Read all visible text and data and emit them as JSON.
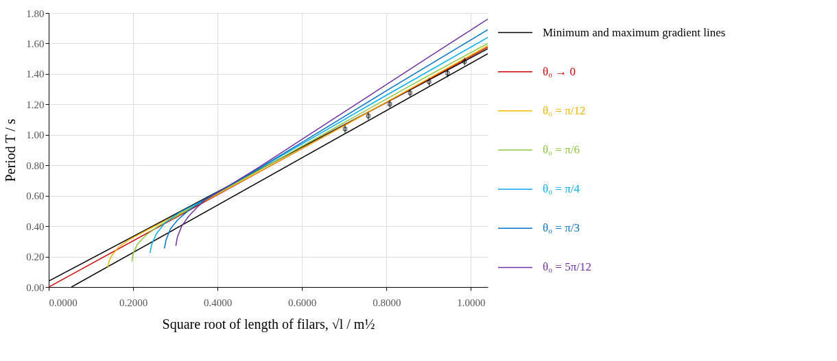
{
  "chart_data": {
    "type": "line",
    "xlabel": "Square root of length of filars, √l / m½",
    "ylabel": "Period T / s",
    "xlim": [
      0,
      1.04
    ],
    "ylim": [
      0,
      1.8
    ],
    "xticks": [
      {
        "value": 0,
        "label": "0.0000"
      },
      {
        "value": 0.2,
        "label": "0.2000"
      },
      {
        "value": 0.4,
        "label": "0.4000"
      },
      {
        "value": 0.6,
        "label": "0.6000"
      },
      {
        "value": 0.8,
        "label": "0.8000"
      },
      {
        "value": 1.0,
        "label": "1.0000"
      }
    ],
    "yticks": [
      {
        "value": 0,
        "label": "0.00"
      },
      {
        "value": 0.2,
        "label": "0.20"
      },
      {
        "value": 0.4,
        "label": "0.40"
      },
      {
        "value": 0.6,
        "label": "0.60"
      },
      {
        "value": 0.8,
        "label": "0.80"
      },
      {
        "value": 1.0,
        "label": "1.00"
      },
      {
        "value": 1.2,
        "label": "1.20"
      },
      {
        "value": 1.4,
        "label": "1.40"
      },
      {
        "value": 1.6,
        "label": "1.60"
      },
      {
        "value": 1.8,
        "label": "1.80"
      }
    ],
    "grid": true,
    "legend": "right",
    "marker": "none",
    "line_style": "solid",
    "series": [
      {
        "name": "Minimum and maximum gradient lines",
        "color": "#000000",
        "x": [
          0,
          1.04
        ],
        "values": [
          0.039,
          1.565
        ]
      },
      {
        "color": "#000000",
        "x": [
          0.054,
          1.04
        ],
        "values": [
          0,
          1.533
        ]
      },
      {
        "name": "θ₀ → 0",
        "color": "#cc0000",
        "x": [
          0,
          1.04
        ],
        "values": [
          0,
          1.577
        ]
      },
      {
        "name": "θ₀ = π/12",
        "color": "#f0b400",
        "x": [
          0.14,
          0.143,
          0.15,
          0.165,
          0.19,
          0.23,
          0.3,
          0.37,
          0.5,
          0.7,
          0.9,
          1.04
        ],
        "values": [
          0.125,
          0.17,
          0.21,
          0.26,
          0.31,
          0.37,
          0.47,
          0.565,
          0.76,
          1.06,
          1.37,
          1.585
        ]
      },
      {
        "name": "θ₀ = π/6",
        "color": "#8cc63f",
        "x": [
          0.197,
          0.2,
          0.21,
          0.23,
          0.26,
          0.3,
          0.37,
          0.5,
          0.7,
          0.9,
          1.04
        ],
        "values": [
          0.168,
          0.22,
          0.28,
          0.34,
          0.4,
          0.46,
          0.57,
          0.77,
          1.08,
          1.39,
          1.6
        ]
      },
      {
        "name": "θ₀ = π/4",
        "color": "#00aeef",
        "x": [
          0.24,
          0.244,
          0.255,
          0.275,
          0.31,
          0.37,
          0.45,
          0.6,
          0.8,
          1.04
        ],
        "values": [
          0.224,
          0.28,
          0.35,
          0.42,
          0.49,
          0.575,
          0.7,
          0.94,
          1.26,
          1.64
        ]
      },
      {
        "name": "θ₀ = π/3",
        "color": "#0072c6",
        "x": [
          0.274,
          0.278,
          0.288,
          0.305,
          0.33,
          0.37,
          0.45,
          0.6,
          0.8,
          1.04
        ],
        "values": [
          0.254,
          0.31,
          0.38,
          0.44,
          0.5,
          0.575,
          0.7,
          0.95,
          1.29,
          1.69
        ]
      },
      {
        "name": "θ₀ = 5π/12",
        "color": "#7030a0",
        "x": [
          0.301,
          0.305,
          0.315,
          0.33,
          0.35,
          0.37,
          0.4,
          0.5,
          0.7,
          0.9,
          1.04
        ],
        "values": [
          0.271,
          0.33,
          0.4,
          0.46,
          0.52,
          0.57,
          0.62,
          0.79,
          1.15,
          1.51,
          1.76
        ]
      },
      {
        "type": "scatter",
        "marker": "cross",
        "color": "#000000",
        "x": [
          0.702,
          0.757,
          0.808,
          0.856,
          0.901,
          0.945,
          0.985
        ],
        "values": [
          1.038,
          1.124,
          1.202,
          1.275,
          1.348,
          1.404,
          1.481
        ],
        "errors": [
          0.025,
          0.025,
          0.025,
          0.025,
          0.025,
          0.025,
          0.025
        ]
      }
    ]
  }
}
